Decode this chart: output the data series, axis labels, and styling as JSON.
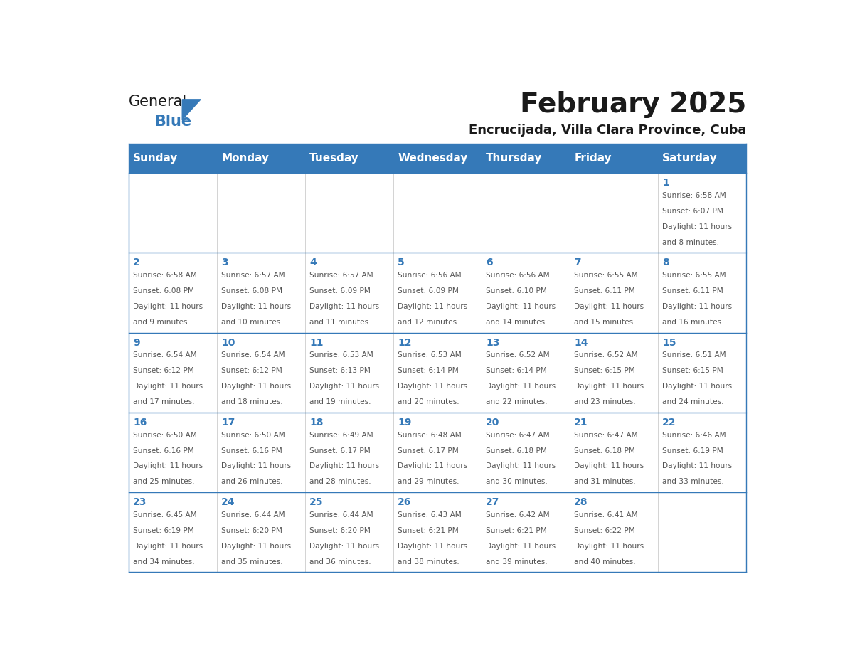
{
  "title": "February 2025",
  "subtitle": "Encrucijada, Villa Clara Province, Cuba",
  "days_of_week": [
    "Sunday",
    "Monday",
    "Tuesday",
    "Wednesday",
    "Thursday",
    "Friday",
    "Saturday"
  ],
  "header_bg": "#3579B8",
  "header_text": "#FFFFFF",
  "cell_bg": "#FFFFFF",
  "border_color": "#3579B8",
  "day_num_color": "#3579B8",
  "cell_text_color": "#555555",
  "title_color": "#1a1a1a",
  "subtitle_color": "#1a1a1a",
  "logo_general_color": "#1a1a1a",
  "logo_blue_color": "#3579B8",
  "calendar_data": [
    [
      null,
      null,
      null,
      null,
      null,
      null,
      {
        "day": 1,
        "sunrise": "6:58 AM",
        "sunset": "6:07 PM",
        "daylight": "11 hours and 8 minutes."
      }
    ],
    [
      {
        "day": 2,
        "sunrise": "6:58 AM",
        "sunset": "6:08 PM",
        "daylight": "11 hours and 9 minutes."
      },
      {
        "day": 3,
        "sunrise": "6:57 AM",
        "sunset": "6:08 PM",
        "daylight": "11 hours and 10 minutes."
      },
      {
        "day": 4,
        "sunrise": "6:57 AM",
        "sunset": "6:09 PM",
        "daylight": "11 hours and 11 minutes."
      },
      {
        "day": 5,
        "sunrise": "6:56 AM",
        "sunset": "6:09 PM",
        "daylight": "11 hours and 12 minutes."
      },
      {
        "day": 6,
        "sunrise": "6:56 AM",
        "sunset": "6:10 PM",
        "daylight": "11 hours and 14 minutes."
      },
      {
        "day": 7,
        "sunrise": "6:55 AM",
        "sunset": "6:11 PM",
        "daylight": "11 hours and 15 minutes."
      },
      {
        "day": 8,
        "sunrise": "6:55 AM",
        "sunset": "6:11 PM",
        "daylight": "11 hours and 16 minutes."
      }
    ],
    [
      {
        "day": 9,
        "sunrise": "6:54 AM",
        "sunset": "6:12 PM",
        "daylight": "11 hours and 17 minutes."
      },
      {
        "day": 10,
        "sunrise": "6:54 AM",
        "sunset": "6:12 PM",
        "daylight": "11 hours and 18 minutes."
      },
      {
        "day": 11,
        "sunrise": "6:53 AM",
        "sunset": "6:13 PM",
        "daylight": "11 hours and 19 minutes."
      },
      {
        "day": 12,
        "sunrise": "6:53 AM",
        "sunset": "6:14 PM",
        "daylight": "11 hours and 20 minutes."
      },
      {
        "day": 13,
        "sunrise": "6:52 AM",
        "sunset": "6:14 PM",
        "daylight": "11 hours and 22 minutes."
      },
      {
        "day": 14,
        "sunrise": "6:52 AM",
        "sunset": "6:15 PM",
        "daylight": "11 hours and 23 minutes."
      },
      {
        "day": 15,
        "sunrise": "6:51 AM",
        "sunset": "6:15 PM",
        "daylight": "11 hours and 24 minutes."
      }
    ],
    [
      {
        "day": 16,
        "sunrise": "6:50 AM",
        "sunset": "6:16 PM",
        "daylight": "11 hours and 25 minutes."
      },
      {
        "day": 17,
        "sunrise": "6:50 AM",
        "sunset": "6:16 PM",
        "daylight": "11 hours and 26 minutes."
      },
      {
        "day": 18,
        "sunrise": "6:49 AM",
        "sunset": "6:17 PM",
        "daylight": "11 hours and 28 minutes."
      },
      {
        "day": 19,
        "sunrise": "6:48 AM",
        "sunset": "6:17 PM",
        "daylight": "11 hours and 29 minutes."
      },
      {
        "day": 20,
        "sunrise": "6:47 AM",
        "sunset": "6:18 PM",
        "daylight": "11 hours and 30 minutes."
      },
      {
        "day": 21,
        "sunrise": "6:47 AM",
        "sunset": "6:18 PM",
        "daylight": "11 hours and 31 minutes."
      },
      {
        "day": 22,
        "sunrise": "6:46 AM",
        "sunset": "6:19 PM",
        "daylight": "11 hours and 33 minutes."
      }
    ],
    [
      {
        "day": 23,
        "sunrise": "6:45 AM",
        "sunset": "6:19 PM",
        "daylight": "11 hours and 34 minutes."
      },
      {
        "day": 24,
        "sunrise": "6:44 AM",
        "sunset": "6:20 PM",
        "daylight": "11 hours and 35 minutes."
      },
      {
        "day": 25,
        "sunrise": "6:44 AM",
        "sunset": "6:20 PM",
        "daylight": "11 hours and 36 minutes."
      },
      {
        "day": 26,
        "sunrise": "6:43 AM",
        "sunset": "6:21 PM",
        "daylight": "11 hours and 38 minutes."
      },
      {
        "day": 27,
        "sunrise": "6:42 AM",
        "sunset": "6:21 PM",
        "daylight": "11 hours and 39 minutes."
      },
      {
        "day": 28,
        "sunrise": "6:41 AM",
        "sunset": "6:22 PM",
        "daylight": "11 hours and 40 minutes."
      },
      null
    ]
  ]
}
